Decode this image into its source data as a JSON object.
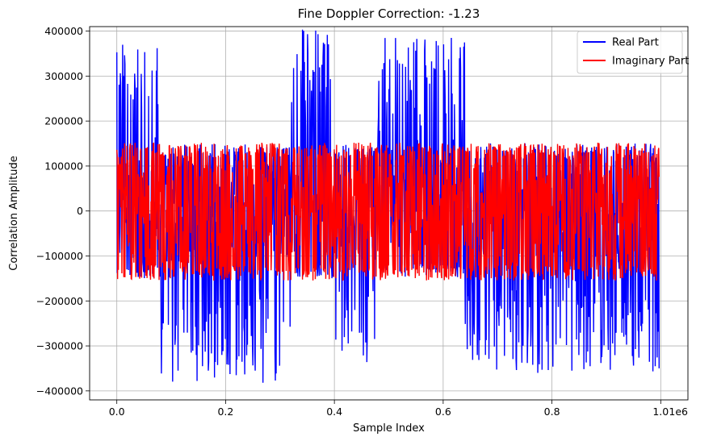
{
  "chart_data": {
    "type": "line",
    "title": "Fine Doppler Correction: -1.23",
    "xlabel": "Sample Index",
    "ylabel": "Correlation Amplitude",
    "x_offset_label": "1e6",
    "xlim": [
      -0.05,
      1.05
    ],
    "ylim": [
      -420000,
      410000
    ],
    "x_ticks": [
      0.0,
      0.2,
      0.4,
      0.6,
      0.8,
      1.0
    ],
    "x_tick_labels": [
      "0.0",
      "0.2",
      "0.4",
      "0.6",
      "0.8",
      "1.0"
    ],
    "y_ticks": [
      -400000,
      -300000,
      -200000,
      -100000,
      0,
      100000,
      200000,
      300000,
      400000
    ],
    "y_tick_labels": [
      "−400000",
      "−300000",
      "−200000",
      "−100000",
      "0",
      "100000",
      "200000",
      "300000",
      "400000"
    ],
    "grid": true,
    "legend_position": "top-right",
    "x_range": [
      0.0,
      0.997
    ],
    "series": [
      {
        "name": "Real Part",
        "color": "#0000ff",
        "envelope_segments": [
          {
            "x_start": 0.0,
            "x_end": 0.08,
            "y_min": -150000,
            "y_max": 370000
          },
          {
            "x_start": 0.08,
            "x_end": 0.32,
            "y_min": -385000,
            "y_max": 150000
          },
          {
            "x_start": 0.32,
            "x_end": 0.4,
            "y_min": -150000,
            "y_max": 405000
          },
          {
            "x_start": 0.4,
            "x_end": 0.48,
            "y_min": -375000,
            "y_max": 150000
          },
          {
            "x_start": 0.48,
            "x_end": 0.64,
            "y_min": -150000,
            "y_max": 385000
          },
          {
            "x_start": 0.64,
            "x_end": 0.997,
            "y_min": -360000,
            "y_max": 150000
          }
        ]
      },
      {
        "name": "Imaginary Part",
        "color": "#ff0000",
        "envelope_segments": [
          {
            "x_start": 0.0,
            "x_end": 0.997,
            "y_min": -155000,
            "y_max": 152000
          }
        ]
      }
    ]
  }
}
